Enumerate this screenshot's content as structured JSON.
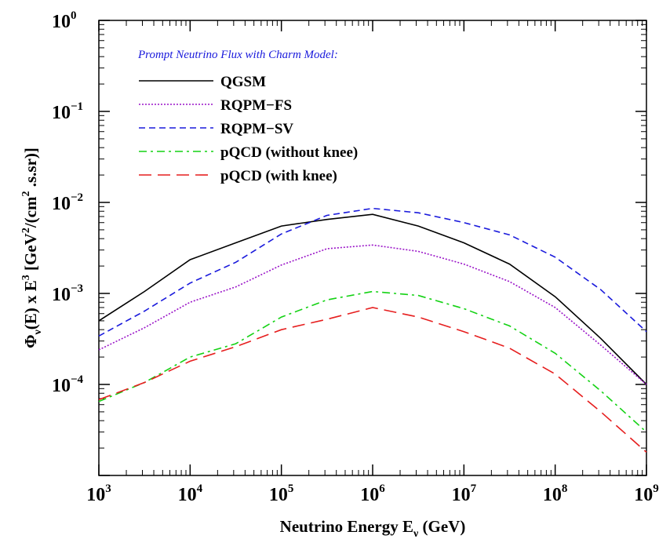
{
  "chart_data": {
    "type": "line",
    "x_scale": "log",
    "y_scale": "log",
    "xlim": [
      1000,
      1000000000
    ],
    "ylim": [
      1e-05,
      1
    ],
    "x_ticks": [
      {
        "value": 1000,
        "base": "10",
        "exp": "3"
      },
      {
        "value": 10000,
        "base": "10",
        "exp": "4"
      },
      {
        "value": 100000,
        "base": "10",
        "exp": "5"
      },
      {
        "value": 1000000,
        "base": "10",
        "exp": "6"
      },
      {
        "value": 10000000,
        "base": "10",
        "exp": "7"
      },
      {
        "value": 100000000,
        "base": "10",
        "exp": "8"
      },
      {
        "value": 1000000000,
        "base": "10",
        "exp": "9"
      }
    ],
    "y_ticks": [
      {
        "value": 1,
        "base": "10",
        "exp": "0"
      },
      {
        "value": 0.1,
        "base": "10",
        "exp": "−1"
      },
      {
        "value": 0.01,
        "base": "10",
        "exp": "−2"
      },
      {
        "value": 0.001,
        "base": "10",
        "exp": "−3"
      },
      {
        "value": 0.0001,
        "base": "10",
        "exp": "−4"
      }
    ],
    "xlabel": {
      "main": "Neutrino Energy  E",
      "sub": "ν",
      "tail": " (GeV)"
    },
    "ylabel": {
      "phi": "Φ",
      "phi_sub": "ν",
      "p1": "(E) x E",
      "sup3": "3",
      "p2": "  [GeV",
      "sup2a": "2",
      "p3": "/(cm",
      "sup2b": "2",
      "p4": " .s.sr)]"
    },
    "legend_title": "Prompt Neutrino Flux with Charm Model:",
    "legend_title_color": "#1a1adc",
    "legend_position": "top-left",
    "series": [
      {
        "name": "QGSM",
        "color": "#000000",
        "dash": "solid",
        "x": [
          1000,
          3162,
          10000,
          31623,
          100000,
          316228,
          1000000,
          3162278,
          10000000,
          31622777,
          100000000,
          316227766,
          1000000000
        ],
        "y": [
          0.0005,
          0.00105,
          0.00235,
          0.0036,
          0.0055,
          0.0065,
          0.0074,
          0.0055,
          0.0036,
          0.0021,
          0.00092,
          0.00032,
          0.0001
        ]
      },
      {
        "name": "RQPM−FS",
        "color": "#9a14c8",
        "dash": "dotted",
        "x": [
          1000,
          3162,
          10000,
          31623,
          100000,
          316228,
          1000000,
          3162278,
          10000000,
          31622777,
          100000000,
          316227766,
          1000000000
        ],
        "y": [
          0.00024,
          0.00042,
          0.0008,
          0.00118,
          0.00205,
          0.0031,
          0.0034,
          0.0029,
          0.0021,
          0.00135,
          0.0007,
          0.00027,
          0.0001
        ]
      },
      {
        "name": "RQPM−SV",
        "color": "#1a1adc",
        "dash": "dashed",
        "x": [
          1000,
          3162,
          10000,
          31623,
          100000,
          316228,
          1000000,
          3162278,
          10000000,
          31622777,
          100000000,
          316227766,
          1000000000
        ],
        "y": [
          0.00034,
          0.00064,
          0.0013,
          0.0022,
          0.0045,
          0.0072,
          0.0086,
          0.0077,
          0.006,
          0.0044,
          0.0025,
          0.0011,
          0.00038
        ]
      },
      {
        "name": "pQCD (without knee)",
        "color": "#14d214",
        "dash": "dashdot",
        "x": [
          1000,
          3162,
          10000,
          31623,
          100000,
          316228,
          1000000,
          3162278,
          10000000,
          31622777,
          100000000,
          316227766,
          1000000000
        ],
        "y": [
          6.5e-05,
          0.000105,
          0.0002,
          0.00028,
          0.00055,
          0.00085,
          0.00105,
          0.00095,
          0.00068,
          0.00044,
          0.00022,
          8.5e-05,
          3e-05
        ]
      },
      {
        "name": "pQCD (with knee)",
        "color": "#e61e1e",
        "dash": "longdash",
        "x": [
          1000,
          3162,
          10000,
          31623,
          100000,
          316228,
          1000000,
          3162278,
          10000000,
          31622777,
          100000000,
          316227766,
          1000000000
        ],
        "y": [
          6.8e-05,
          0.000105,
          0.00018,
          0.00026,
          0.0004,
          0.00052,
          0.0007,
          0.00055,
          0.00038,
          0.00025,
          0.00013,
          5e-05,
          1.8e-05
        ]
      }
    ]
  }
}
